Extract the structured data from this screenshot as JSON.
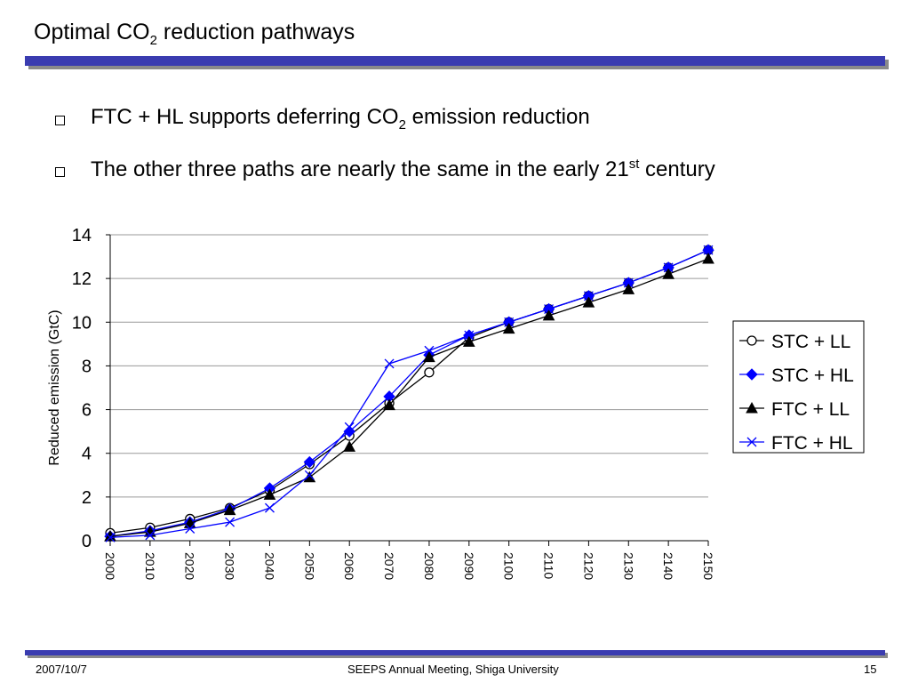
{
  "slide": {
    "title_main": "Optimal CO",
    "title_sub": "2",
    "title_rest": " reduction pathways",
    "bullets": [
      {
        "text_a": "FTC + HL supports deferring CO",
        "sub": "2",
        "text_b": " emission reduction"
      },
      {
        "text_a": "The other three paths are nearly the same in the early 21",
        "sup": "st",
        "text_b": " century"
      }
    ]
  },
  "footer": {
    "date": "2007/10/7",
    "center": "SEEPS Annual Meeting, Shiga University",
    "page": "15"
  },
  "colors": {
    "rule": "#3a3cb0",
    "stc_ll": "#000000",
    "stc_hl": "#0000ff",
    "ftc_ll": "#000000",
    "ftc_hl": "#0000ff"
  },
  "chart_data": {
    "type": "line",
    "title": "",
    "xlabel": "",
    "ylabel": "Reduced emission (GtC)",
    "ylim": [
      0,
      14
    ],
    "yticks": [
      "0",
      "2",
      "4",
      "6",
      "8",
      "10",
      "12",
      "14"
    ],
    "grid": true,
    "legend": "right",
    "x": [
      "2000",
      "2010",
      "2020",
      "2030",
      "2040",
      "2050",
      "2060",
      "2070",
      "2080",
      "2090",
      "2100",
      "2110",
      "2120",
      "2130",
      "2140",
      "2150"
    ],
    "series": [
      {
        "name": "STC + LL",
        "marker": "circle",
        "values": [
          0.35,
          0.6,
          1.0,
          1.5,
          2.3,
          3.5,
          4.8,
          6.3,
          7.7,
          9.3,
          10.0,
          10.6,
          11.2,
          11.8,
          12.5,
          13.3
        ]
      },
      {
        "name": "STC + HL",
        "marker": "diamond",
        "values": [
          0.2,
          0.45,
          0.85,
          1.45,
          2.4,
          3.6,
          5.0,
          6.6,
          8.5,
          9.4,
          10.0,
          10.6,
          11.2,
          11.8,
          12.5,
          13.3
        ]
      },
      {
        "name": "FTC + LL",
        "marker": "triangle",
        "values": [
          0.2,
          0.4,
          0.8,
          1.4,
          2.1,
          2.9,
          4.3,
          6.2,
          8.4,
          9.1,
          9.7,
          10.3,
          10.9,
          11.5,
          12.2,
          12.9
        ]
      },
      {
        "name": "FTC + HL",
        "marker": "x",
        "values": [
          0.15,
          0.25,
          0.55,
          0.85,
          1.5,
          3.0,
          5.2,
          8.1,
          8.7,
          9.4,
          10.0,
          10.6,
          11.2,
          11.8,
          12.5,
          13.3
        ]
      }
    ]
  }
}
